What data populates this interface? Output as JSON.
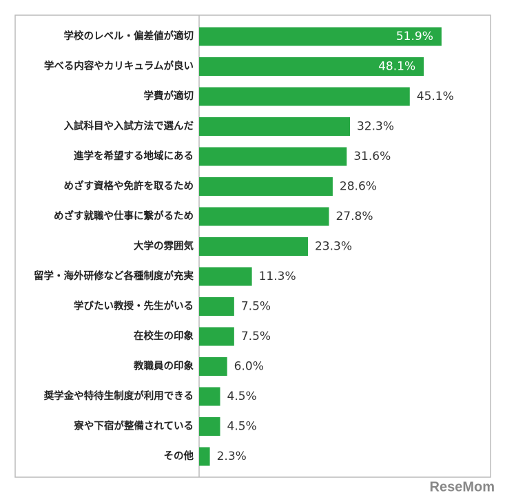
{
  "chart_data": {
    "type": "barh",
    "categories": [
      "学校のレベル・偏差値が適切",
      "学べる内容やカリキュラムが良い",
      "学費が適切",
      "入試科目や入試方法で選んだ",
      "進学を希望する地域にある",
      "めざす資格や免許を取るため",
      "めざす就職や仕事に繋がるため",
      "大学の雰囲気",
      "留学・海外研修など各種制度が充実",
      "学びたい教授・先生がいる",
      "在校生の印象",
      "教職員の印象",
      "奨学金や特待生制度が利用できる",
      "寮や下宿が整備されている",
      "その他"
    ],
    "values": [
      51.9,
      48.1,
      45.1,
      32.3,
      31.6,
      28.6,
      27.8,
      23.3,
      11.3,
      7.5,
      7.5,
      6.0,
      4.5,
      4.5,
      2.3
    ],
    "value_labels": [
      "51.9%",
      "48.1%",
      "45.1%",
      "32.3%",
      "31.6%",
      "28.6%",
      "27.8%",
      "23.3%",
      "11.3%",
      "7.5%",
      "7.5%",
      "6.0%",
      "4.5%",
      "4.5%",
      "2.3%"
    ],
    "color": "#27a844",
    "watermark": "ReseMom"
  }
}
